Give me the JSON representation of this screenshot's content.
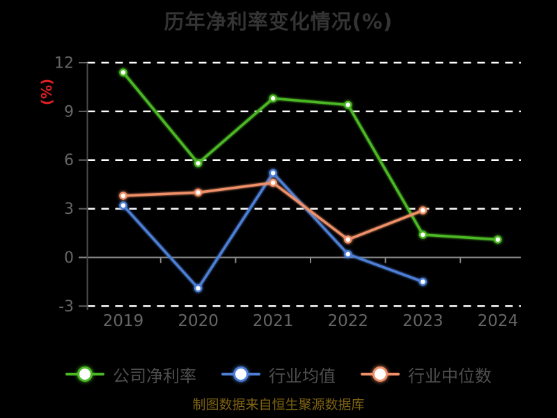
{
  "title": "历年净利率变化情况(%)",
  "y_axis_label": "(%)",
  "footer": "制图数据来自恒生聚源数据库",
  "colors": {
    "background": "#000000",
    "grid": "#ffffff",
    "zero_line": "#8a8a8a",
    "axis_line": "#4a4a4a",
    "axis_text": "#666666",
    "title_text": "#343434",
    "legend_text": "#4e4e4e",
    "ylabel": "#dd2020",
    "footer_text": "#7f6312"
  },
  "chart_data": {
    "type": "line",
    "title": "历年净利率变化情况(%)",
    "ylabel": "(%)",
    "xlabel": "",
    "categories": [
      "2019",
      "2020",
      "2021",
      "2022",
      "2023",
      "2024"
    ],
    "series": [
      {
        "name": "公司净利率",
        "color": "#4bb824",
        "values": [
          11.4,
          5.8,
          9.8,
          9.4,
          1.4,
          1.1
        ]
      },
      {
        "name": "行业均值",
        "color": "#4d7fd6",
        "values": [
          3.2,
          -1.9,
          5.2,
          0.2,
          -1.5,
          null
        ]
      },
      {
        "name": "行业中位数",
        "color": "#ef9068",
        "values": [
          3.8,
          4.0,
          4.6,
          1.1,
          2.9,
          null
        ]
      }
    ],
    "yticks": [
      -3,
      0,
      3,
      6,
      9,
      12
    ],
    "ylim": [
      -3,
      12
    ],
    "grid": "dashed-white-horizontal",
    "zero_axis": "solid-gray",
    "legend_position": "bottom",
    "marker_style": "white-filled-circle"
  }
}
